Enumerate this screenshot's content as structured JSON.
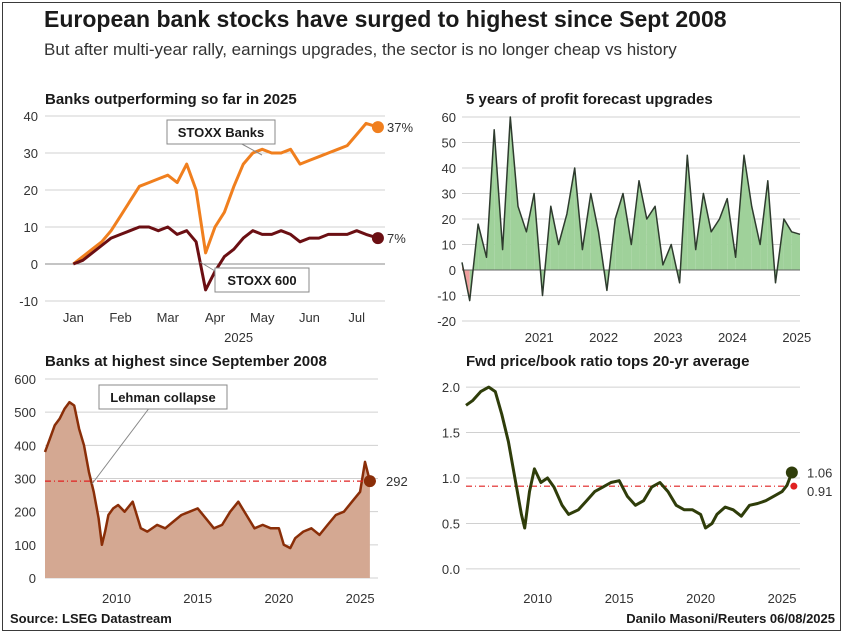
{
  "title": "European bank stocks have surged to highest since Sept 2008",
  "subtitle": "But after multi-year rally, earnings upgrades, the sector is no longer cheap vs history",
  "source": "Source: LSEG Datastream",
  "credit": "Danilo Masoni/Reuters 06/08/2025",
  "colors": {
    "banks": "#f07f1e",
    "stoxx600": "#6b0f13",
    "upgrades_line": "#2e3b2e",
    "upgrades_pos": "#9fd19a",
    "upgrades_neg": "#f0a0a0",
    "banks_area": "#d4a892",
    "banks_line": "#8a2e08",
    "avg_line": "#e02020",
    "pb_line": "#2f3d0a",
    "grid": "#d0d0d0"
  },
  "chart_data": [
    {
      "type": "line",
      "title": "Banks outperforming so far in 2025",
      "xlabel": "2025",
      "x_ticks": [
        "Jan",
        "Feb",
        "Mar",
        "Apr",
        "May",
        "Jun",
        "Jul"
      ],
      "y_ticks": [
        "40",
        "30",
        "20",
        "10",
        "0",
        "-10"
      ],
      "ylim": [
        -10,
        40
      ],
      "series": [
        {
          "name": "STOXX Banks",
          "end_label": "37%",
          "x": [
            0,
            0.2,
            0.4,
            0.6,
            0.8,
            1.0,
            1.2,
            1.4,
            1.6,
            1.8,
            2.0,
            2.2,
            2.4,
            2.6,
            2.8,
            3.0,
            3.2,
            3.4,
            3.6,
            3.8,
            4.0,
            4.2,
            4.4,
            4.6,
            4.8,
            5.0,
            5.2,
            5.4,
            5.6,
            5.8,
            6.0,
            6.2,
            6.45
          ],
          "values": [
            0,
            2,
            4,
            6,
            9,
            13,
            17,
            21,
            22,
            23,
            24,
            22,
            27,
            20,
            3,
            10,
            14,
            21,
            27,
            30,
            31,
            30,
            30,
            31,
            27,
            28,
            29,
            30,
            31,
            32,
            35,
            38,
            37
          ]
        },
        {
          "name": "STOXX 600",
          "end_label": "7%",
          "x": [
            0,
            0.2,
            0.4,
            0.6,
            0.8,
            1.0,
            1.2,
            1.4,
            1.6,
            1.8,
            2.0,
            2.2,
            2.4,
            2.6,
            2.8,
            3.0,
            3.2,
            3.4,
            3.6,
            3.8,
            4.0,
            4.2,
            4.4,
            4.6,
            4.8,
            5.0,
            5.2,
            5.4,
            5.6,
            5.8,
            6.0,
            6.2,
            6.45
          ],
          "values": [
            0,
            1,
            3,
            5,
            7,
            8,
            9,
            10,
            10,
            9,
            10,
            8,
            9,
            6,
            -7,
            -2,
            2,
            4,
            7,
            9,
            8,
            8,
            9,
            8,
            6,
            7,
            7,
            8,
            8,
            8,
            9,
            8,
            7
          ]
        }
      ],
      "annotations": [
        "STOXX Banks",
        "STOXX 600"
      ]
    },
    {
      "type": "area",
      "title": "5 years of profit forecast upgrades",
      "x_ticks": [
        "2021",
        "2022",
        "2023",
        "2024",
        "2025"
      ],
      "y_ticks": [
        "60",
        "50",
        "40",
        "30",
        "20",
        "10",
        "0",
        "-10",
        "-20"
      ],
      "ylim": [
        -20,
        60
      ],
      "x": [
        2020.3,
        2020.42,
        2020.55,
        2020.68,
        2020.8,
        2020.93,
        2021.05,
        2021.17,
        2021.3,
        2021.42,
        2021.55,
        2021.68,
        2021.8,
        2021.93,
        2022.05,
        2022.17,
        2022.3,
        2022.42,
        2022.55,
        2022.68,
        2022.8,
        2022.93,
        2023.05,
        2023.17,
        2023.3,
        2023.42,
        2023.55,
        2023.68,
        2023.8,
        2023.93,
        2024.05,
        2024.17,
        2024.3,
        2024.42,
        2024.55,
        2024.68,
        2024.8,
        2024.93,
        2025.05,
        2025.17,
        2025.3,
        2025.42,
        2025.55
      ],
      "values": [
        3,
        -12,
        18,
        5,
        55,
        8,
        60,
        25,
        15,
        30,
        -10,
        25,
        10,
        22,
        40,
        8,
        30,
        15,
        -8,
        20,
        30,
        10,
        35,
        20,
        25,
        2,
        10,
        -5,
        45,
        8,
        30,
        15,
        20,
        28,
        5,
        45,
        25,
        10,
        35,
        -5,
        20,
        15,
        14
      ]
    },
    {
      "type": "area",
      "title": "Banks at highest since September 2008",
      "annotation": "Lehman collapse",
      "x_ticks": [
        "2010",
        "2015",
        "2020",
        "2025"
      ],
      "y_ticks": [
        "600",
        "500",
        "400",
        "300",
        "200",
        "100",
        "0"
      ],
      "ylim": [
        0,
        600
      ],
      "reference_line": 292,
      "end_label": "292",
      "x": [
        2005.6,
        2005.9,
        2006.2,
        2006.5,
        2006.8,
        2007.1,
        2007.4,
        2007.7,
        2008.0,
        2008.3,
        2008.6,
        2008.9,
        2009.1,
        2009.3,
        2009.5,
        2009.8,
        2010.1,
        2010.5,
        2011.0,
        2011.5,
        2011.9,
        2012.5,
        2013.0,
        2013.5,
        2014.0,
        2014.5,
        2015.0,
        2015.5,
        2016.0,
        2016.5,
        2017.0,
        2017.5,
        2018.0,
        2018.5,
        2019.0,
        2019.5,
        2020.0,
        2020.3,
        2020.7,
        2021.0,
        2021.5,
        2022.0,
        2022.5,
        2023.0,
        2023.5,
        2024.0,
        2024.5,
        2025.0,
        2025.3,
        2025.6
      ],
      "values": [
        380,
        420,
        460,
        480,
        510,
        530,
        520,
        450,
        400,
        320,
        260,
        180,
        100,
        140,
        190,
        210,
        220,
        200,
        230,
        150,
        140,
        160,
        150,
        170,
        190,
        200,
        210,
        180,
        150,
        160,
        200,
        230,
        190,
        150,
        160,
        150,
        150,
        100,
        90,
        120,
        140,
        150,
        130,
        160,
        190,
        200,
        230,
        260,
        350,
        292
      ]
    },
    {
      "type": "line",
      "title": "Fwd price/book ratio tops 20-yr average",
      "x_ticks": [
        "2010",
        "2015",
        "2020",
        "2025"
      ],
      "y_ticks": [
        "2.0",
        "1.5",
        "1.0",
        "0.5",
        "0.0"
      ],
      "ylim": [
        0,
        2.0
      ],
      "reference_line": 0.91,
      "end_labels": [
        "1.06",
        "0.91"
      ],
      "x": [
        2005.6,
        2006.0,
        2006.5,
        2007.0,
        2007.4,
        2007.8,
        2008.2,
        2008.6,
        2009.0,
        2009.2,
        2009.5,
        2009.8,
        2010.2,
        2010.6,
        2011.0,
        2011.5,
        2011.9,
        2012.5,
        2013.0,
        2013.5,
        2014.0,
        2014.5,
        2015.0,
        2015.5,
        2016.0,
        2016.5,
        2017.0,
        2017.5,
        2018.0,
        2018.5,
        2019.0,
        2019.5,
        2020.0,
        2020.3,
        2020.7,
        2021.0,
        2021.5,
        2022.0,
        2022.5,
        2023.0,
        2023.5,
        2024.0,
        2024.5,
        2025.0,
        2025.3,
        2025.6
      ],
      "values": [
        1.8,
        1.85,
        1.95,
        2.0,
        1.95,
        1.7,
        1.4,
        1.0,
        0.6,
        0.45,
        0.85,
        1.1,
        0.95,
        1.0,
        0.9,
        0.7,
        0.6,
        0.65,
        0.75,
        0.85,
        0.9,
        0.95,
        0.97,
        0.8,
        0.7,
        0.75,
        0.9,
        0.95,
        0.85,
        0.7,
        0.65,
        0.65,
        0.6,
        0.45,
        0.5,
        0.6,
        0.68,
        0.65,
        0.58,
        0.7,
        0.72,
        0.75,
        0.8,
        0.85,
        0.92,
        1.06
      ]
    }
  ]
}
